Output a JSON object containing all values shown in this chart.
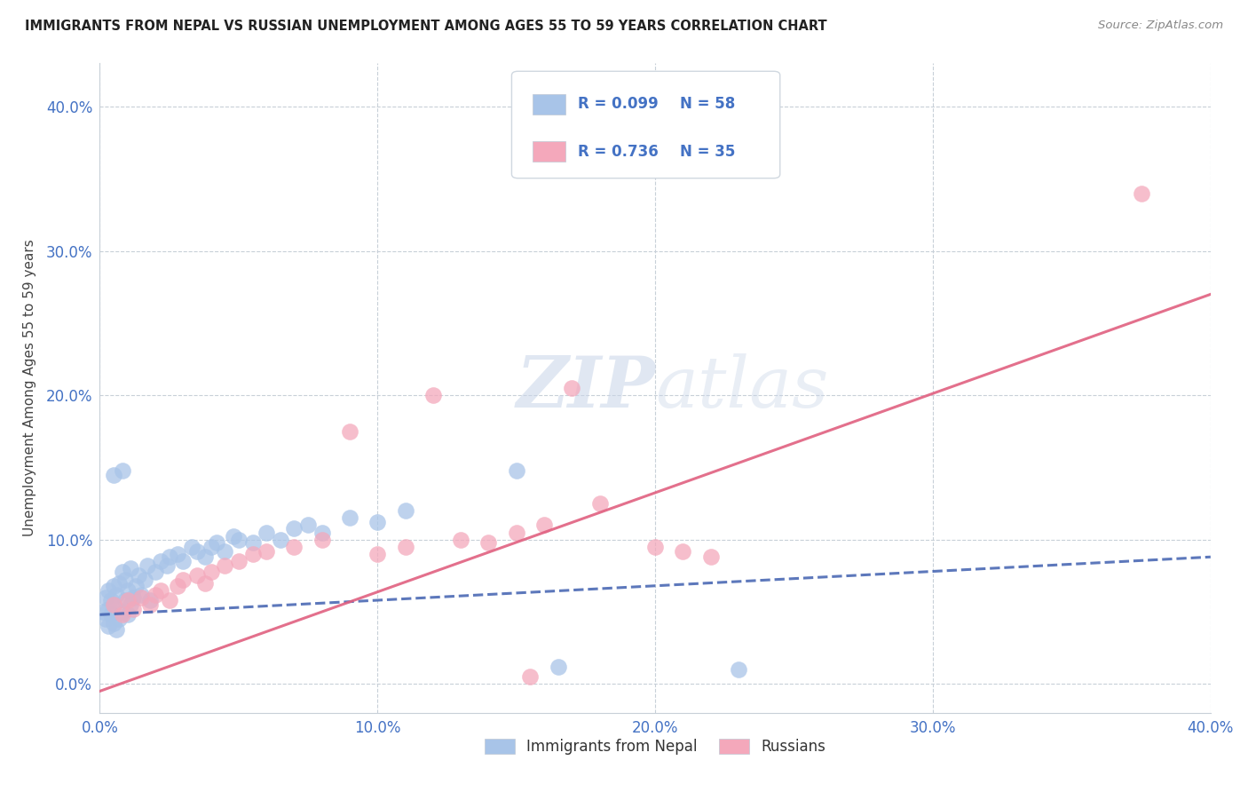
{
  "title": "IMMIGRANTS FROM NEPAL VS RUSSIAN UNEMPLOYMENT AMONG AGES 55 TO 59 YEARS CORRELATION CHART",
  "source": "Source: ZipAtlas.com",
  "ylabel": "Unemployment Among Ages 55 to 59 years",
  "xlim": [
    0.0,
    0.4
  ],
  "ylim": [
    -0.02,
    0.43
  ],
  "xticks": [
    0.0,
    0.1,
    0.2,
    0.3,
    0.4
  ],
  "yticks": [
    0.0,
    0.1,
    0.2,
    0.3,
    0.4
  ],
  "nepal_R": 0.099,
  "nepal_N": 58,
  "russian_R": 0.736,
  "russian_N": 35,
  "nepal_color": "#a8c4e8",
  "russian_color": "#f4a8bb",
  "nepal_line_color": "#4060b0",
  "russian_line_color": "#e06080",
  "watermark_zip": "ZIP",
  "watermark_atlas": "atlas",
  "nepal_x": [
    0.001,
    0.002,
    0.002,
    0.003,
    0.003,
    0.003,
    0.004,
    0.004,
    0.005,
    0.005,
    0.005,
    0.006,
    0.006,
    0.007,
    0.007,
    0.008,
    0.008,
    0.009,
    0.009,
    0.01,
    0.01,
    0.011,
    0.011,
    0.012,
    0.013,
    0.014,
    0.015,
    0.016,
    0.017,
    0.018,
    0.02,
    0.022,
    0.024,
    0.025,
    0.028,
    0.03,
    0.033,
    0.035,
    0.038,
    0.04,
    0.042,
    0.045,
    0.048,
    0.05,
    0.055,
    0.06,
    0.065,
    0.07,
    0.075,
    0.08,
    0.09,
    0.1,
    0.11,
    0.15,
    0.005,
    0.008,
    0.165,
    0.23
  ],
  "nepal_y": [
    0.05,
    0.045,
    0.06,
    0.04,
    0.052,
    0.065,
    0.048,
    0.058,
    0.042,
    0.055,
    0.068,
    0.038,
    0.062,
    0.045,
    0.07,
    0.05,
    0.078,
    0.058,
    0.072,
    0.048,
    0.065,
    0.055,
    0.08,
    0.06,
    0.068,
    0.075,
    0.062,
    0.072,
    0.082,
    0.058,
    0.078,
    0.085,
    0.082,
    0.088,
    0.09,
    0.085,
    0.095,
    0.092,
    0.088,
    0.095,
    0.098,
    0.092,
    0.102,
    0.1,
    0.098,
    0.105,
    0.1,
    0.108,
    0.11,
    0.105,
    0.115,
    0.112,
    0.12,
    0.148,
    0.145,
    0.148,
    0.012,
    0.01
  ],
  "russian_x": [
    0.005,
    0.008,
    0.01,
    0.012,
    0.015,
    0.018,
    0.02,
    0.022,
    0.025,
    0.028,
    0.03,
    0.035,
    0.038,
    0.04,
    0.045,
    0.05,
    0.055,
    0.06,
    0.07,
    0.08,
    0.09,
    0.1,
    0.11,
    0.12,
    0.13,
    0.14,
    0.15,
    0.16,
    0.17,
    0.18,
    0.2,
    0.21,
    0.22,
    0.155,
    0.375
  ],
  "russian_y": [
    0.055,
    0.048,
    0.058,
    0.052,
    0.06,
    0.055,
    0.062,
    0.065,
    0.058,
    0.068,
    0.072,
    0.075,
    0.07,
    0.078,
    0.082,
    0.085,
    0.09,
    0.092,
    0.095,
    0.1,
    0.175,
    0.09,
    0.095,
    0.2,
    0.1,
    0.098,
    0.105,
    0.11,
    0.205,
    0.125,
    0.095,
    0.092,
    0.088,
    0.005,
    0.34
  ],
  "nepal_trendline": [
    0.0,
    0.4,
    0.048,
    0.088
  ],
  "russian_trendline": [
    0.0,
    0.4,
    -0.005,
    0.27
  ]
}
